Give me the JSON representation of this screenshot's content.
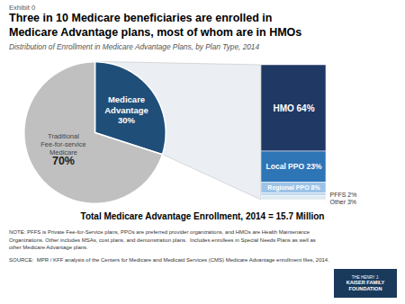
{
  "chart_data": [
    {
      "type": "pie",
      "title": "Three in 10 Medicare beneficiaries are enrolled in\nMedicare Advantage plans, most of whom are in HMOs",
      "subtitle": "Distribution of Enrollment in Medicare Advantage Plans, by Plan Type, 2014",
      "categories": [
        "Medicare\nAdvantage",
        "Traditional\nFee-for-service\nMedicare"
      ],
      "values": [
        30,
        70
      ],
      "value_labels": [
        "30%",
        "70%"
      ],
      "colors": [
        "#1f4e79",
        "#c0c0c0"
      ],
      "data_labels": true,
      "annotations": [
        "Exhibit 0",
        "Total Medicare Advantage Enrollment, 2014 = 15.7 Million",
        "NOTE: PFFS is Private Fee-for-Service plans, PPOs are preferred provider organizations, and HMOs are Health Maintenance\nOrganizations. Other includes MSAs, cost plans, and demonstration plans.  Includes enrollees in Special Needs Plans as well as\nother Medicare Advantage plans.",
        "SOURCE:  MPR / KFF analysis of the Centers for Medicare and Medicaid Services (CMS) Medicare Advantage enrollment files, 2014.",
        "THE HENRY J.",
        "KAISER FAMILY",
        "FOUNDATION"
      ]
    },
    {
      "type": "bar",
      "stacked": true,
      "values": [
        64,
        23,
        8,
        2,
        3
      ],
      "value_labels": [
        "HMO 64%",
        "Local PPO 23%",
        "Regional PPO 8%",
        "PFFS 2%",
        "Other 3%"
      ],
      "colors": [
        "#1f3864",
        "#2e75b6",
        "#9dc3e6",
        "#bdd7ee",
        "#deeaf1"
      ],
      "data_labels": true,
      "ylim": [
        0,
        100
      ],
      "tick_labels": false
    }
  ]
}
